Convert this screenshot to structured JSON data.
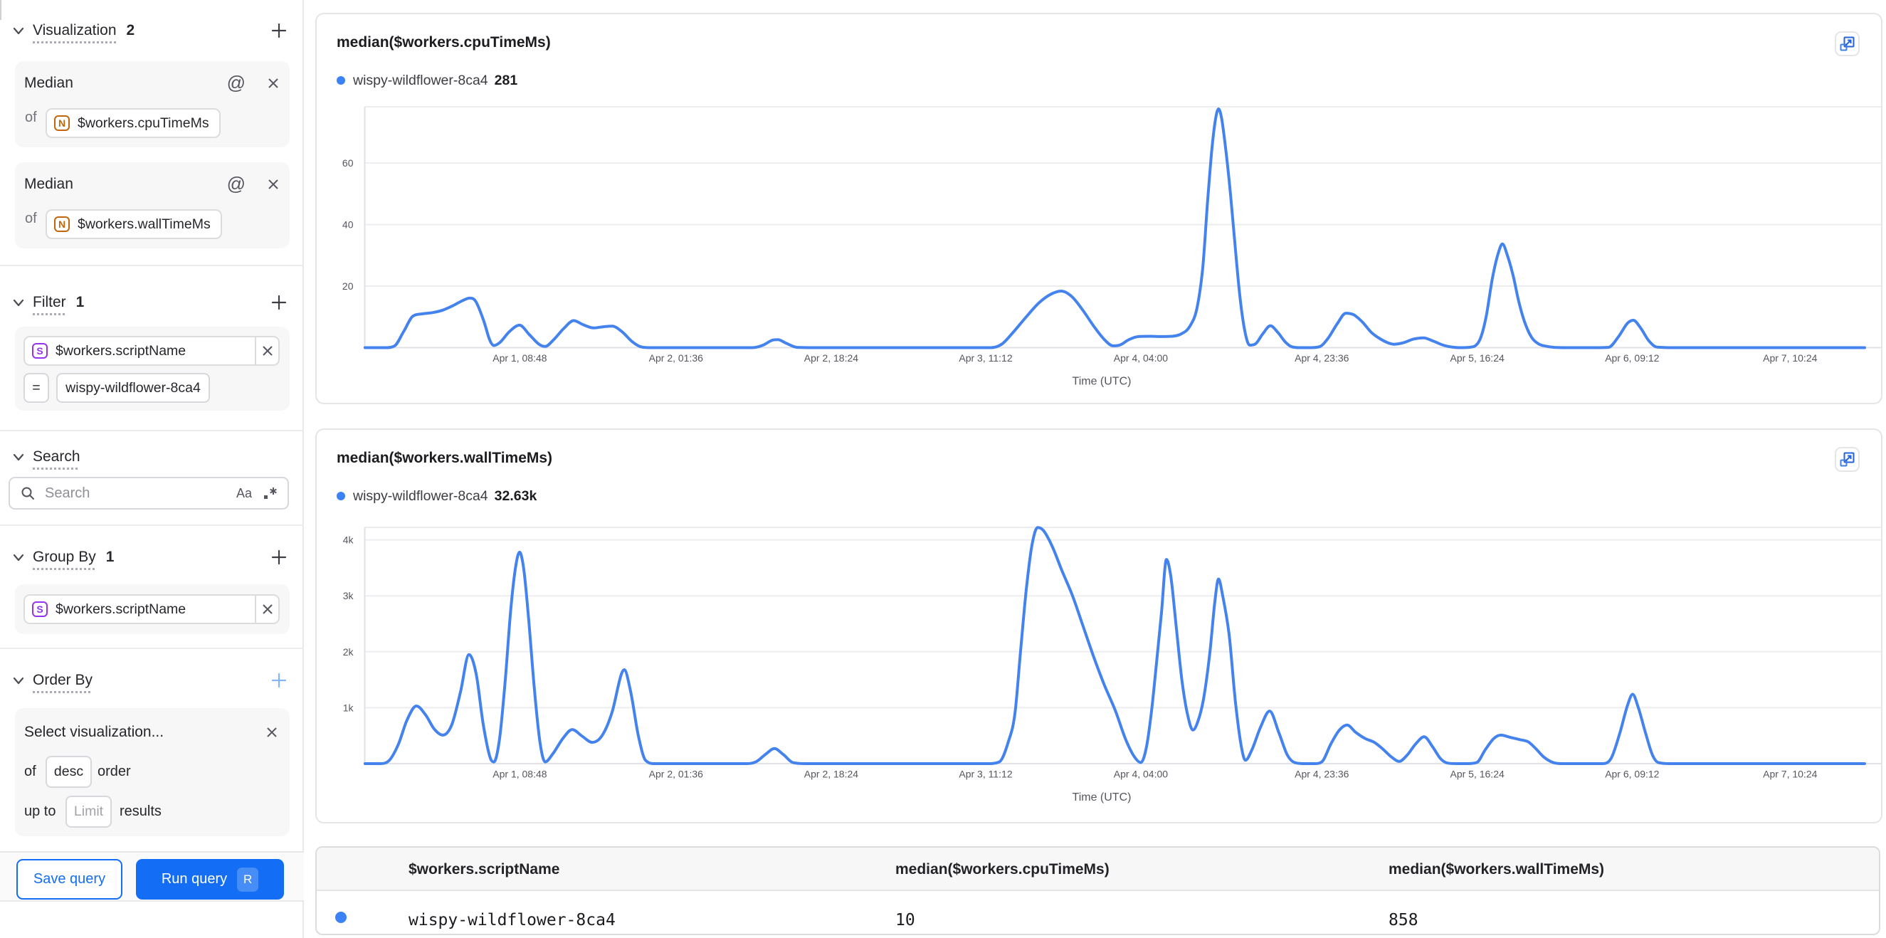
{
  "colors": {
    "accent_blue": "#146ef5",
    "series_blue": "#4483ee",
    "dot_blue": "#3b82f6",
    "n_badge": "#c2660e",
    "s_badge": "#9333ea"
  },
  "sidebar": {
    "visualization": {
      "title": "Visualization",
      "count": "2",
      "cards": [
        {
          "label": "Median",
          "of": "of",
          "badge": "N",
          "field": "$workers.cpuTimeMs"
        },
        {
          "label": "Median",
          "of": "of",
          "badge": "N",
          "field": "$workers.wallTimeMs"
        }
      ]
    },
    "filter": {
      "title": "Filter",
      "count": "1",
      "field_badge": "S",
      "field": "$workers.scriptName",
      "operator": "=",
      "value": "wispy-wildflower-8ca4"
    },
    "search": {
      "title": "Search",
      "placeholder": "Search",
      "case_icon": "Aa"
    },
    "group_by": {
      "title": "Group By",
      "count": "1",
      "field_badge": "S",
      "field": "$workers.scriptName"
    },
    "order_by": {
      "title": "Order By",
      "placeholder": "Select visualization...",
      "of": "of",
      "direction": "desc",
      "order_word": "order",
      "up_to": "up to",
      "limit": "Limit",
      "results_word": "results"
    },
    "footer": {
      "save": "Save query",
      "run": "Run query",
      "run_key": "R"
    }
  },
  "chart_data": [
    {
      "type": "line",
      "title": "median($workers.cpuTimeMs)",
      "legend": {
        "name": "wispy-wildflower-8ca4",
        "value": "281"
      },
      "xlabel": "Time (UTC)",
      "ylim": [
        0,
        78.3
      ],
      "yticks": [
        {
          "label": "20",
          "v": 20
        },
        {
          "label": "40",
          "v": 40
        },
        {
          "label": "60",
          "v": 60
        }
      ],
      "xticks": [
        {
          "label": "Apr 1, 08:48",
          "f": 0.1034
        },
        {
          "label": "Apr 2, 01:36",
          "f": 0.2075
        },
        {
          "label": "Apr 2, 18:24",
          "f": 0.311
        },
        {
          "label": "Apr 3, 11:12",
          "f": 0.414
        },
        {
          "label": "Apr 4, 04:00",
          "f": 0.5174
        },
        {
          "label": "Apr 4, 23:36",
          "f": 0.6381
        },
        {
          "label": "Apr 5, 16:24",
          "f": 0.7417
        },
        {
          "label": "Apr 6, 09:12",
          "f": 0.845
        },
        {
          "label": "Apr 7, 10:24",
          "f": 0.9503
        }
      ],
      "points": [
        [
          0.0002,
          0
        ],
        [
          0.014,
          0
        ],
        [
          0.0197,
          0.5
        ],
        [
          0.0259,
          5.2
        ],
        [
          0.032,
          10.2
        ],
        [
          0.0387,
          11.0
        ],
        [
          0.0453,
          11.4
        ],
        [
          0.052,
          12.2
        ],
        [
          0.0586,
          13.6
        ],
        [
          0.0652,
          15.3
        ],
        [
          0.07,
          16.1
        ],
        [
          0.0738,
          15.2
        ],
        [
          0.0795,
          8.5
        ],
        [
          0.0833,
          2.5
        ],
        [
          0.0861,
          0.7
        ],
        [
          0.0899,
          1.6
        ],
        [
          0.0966,
          5.3
        ],
        [
          0.1032,
          7.3
        ],
        [
          0.1098,
          4.2
        ],
        [
          0.1165,
          1.0
        ],
        [
          0.1203,
          0.4
        ],
        [
          0.126,
          2.6
        ],
        [
          0.1326,
          6.2
        ],
        [
          0.1393,
          8.8
        ],
        [
          0.1459,
          7.4
        ],
        [
          0.1526,
          6.4
        ],
        [
          0.1592,
          6.8
        ],
        [
          0.1649,
          7.0
        ],
        [
          0.1715,
          5.2
        ],
        [
          0.1782,
          2.0
        ],
        [
          0.1839,
          0.3
        ],
        [
          0.1896,
          0
        ],
        [
          0.2133,
          0
        ],
        [
          0.2418,
          0
        ],
        [
          0.2584,
          0
        ],
        [
          0.2655,
          0.8
        ],
        [
          0.2716,
          2.4
        ],
        [
          0.2754,
          2.6
        ],
        [
          0.2811,
          1.4
        ],
        [
          0.2883,
          0.1
        ],
        [
          0.3034,
          0
        ],
        [
          0.3509,
          0
        ],
        [
          0.3936,
          0
        ],
        [
          0.4173,
          0
        ],
        [
          0.4249,
          1.2
        ],
        [
          0.4316,
          4.6
        ],
        [
          0.441,
          10
        ],
        [
          0.4496,
          14.6
        ],
        [
          0.4572,
          17.3
        ],
        [
          0.4643,
          18.4
        ],
        [
          0.4714,
          16.6
        ],
        [
          0.479,
          12
        ],
        [
          0.4866,
          6.6
        ],
        [
          0.4932,
          2.6
        ],
        [
          0.4989,
          0.6
        ],
        [
          0.5037,
          0.9
        ],
        [
          0.5094,
          2.6
        ],
        [
          0.516,
          3.6
        ],
        [
          0.5236,
          3.7
        ],
        [
          0.5312,
          3.6
        ],
        [
          0.5383,
          3.7
        ],
        [
          0.5445,
          4.5
        ],
        [
          0.5502,
          7
        ],
        [
          0.5549,
          13
        ],
        [
          0.5587,
          26
        ],
        [
          0.562,
          48
        ],
        [
          0.5649,
          65
        ],
        [
          0.5673,
          74.5
        ],
        [
          0.5692,
          77.6
        ],
        [
          0.5711,
          75
        ],
        [
          0.5739,
          65
        ],
        [
          0.5772,
          50
        ],
        [
          0.5801,
          34
        ],
        [
          0.5834,
          17
        ],
        [
          0.5867,
          5.5
        ],
        [
          0.59,
          0.8
        ],
        [
          0.5938,
          1.2
        ],
        [
          0.5986,
          4.4
        ],
        [
          0.6038,
          7.1
        ],
        [
          0.609,
          4.8
        ],
        [
          0.6138,
          1.8
        ],
        [
          0.618,
          0.3
        ],
        [
          0.6233,
          0
        ],
        [
          0.6308,
          0
        ],
        [
          0.6365,
          0.3
        ],
        [
          0.6422,
          3
        ],
        [
          0.6484,
          7.8
        ],
        [
          0.6541,
          11.2
        ],
        [
          0.6593,
          10.7
        ],
        [
          0.665,
          8.4
        ],
        [
          0.6712,
          4.9
        ],
        [
          0.6769,
          2.9
        ],
        [
          0.6821,
          1.6
        ],
        [
          0.6864,
          1.1
        ],
        [
          0.6925,
          1.6
        ],
        [
          0.6992,
          2.8
        ],
        [
          0.7058,
          3.2
        ],
        [
          0.7125,
          2.1
        ],
        [
          0.7191,
          0.8
        ],
        [
          0.7248,
          0.2
        ],
        [
          0.7314,
          0
        ],
        [
          0.739,
          0.3
        ],
        [
          0.7438,
          3
        ],
        [
          0.7476,
          10
        ],
        [
          0.7518,
          22.5
        ],
        [
          0.7556,
          30.5
        ],
        [
          0.7585,
          33.7
        ],
        [
          0.7618,
          30
        ],
        [
          0.7656,
          23.5
        ],
        [
          0.7694,
          15
        ],
        [
          0.7732,
          8.5
        ],
        [
          0.7779,
          3.4
        ],
        [
          0.7827,
          1.2
        ],
        [
          0.7874,
          0.5
        ],
        [
          0.7931,
          0.1
        ],
        [
          0.8017,
          0
        ],
        [
          0.8206,
          0
        ],
        [
          0.8292,
          0.1
        ],
        [
          0.8358,
          3.5
        ],
        [
          0.842,
          8
        ],
        [
          0.8458,
          8.9
        ],
        [
          0.8505,
          6.5
        ],
        [
          0.8562,
          2.2
        ],
        [
          0.8614,
          0.2
        ],
        [
          0.8728,
          0
        ],
        [
          0.906,
          0
        ],
        [
          0.944,
          0
        ],
        [
          0.9725,
          0
        ],
        [
          1.0,
          0
        ]
      ]
    },
    {
      "type": "line",
      "title": "median($workers.wallTimeMs)",
      "legend": {
        "name": "wispy-wildflower-8ca4",
        "value": "32.63k"
      },
      "xlabel": "Time (UTC)",
      "ylim": [
        0,
        4224
      ],
      "yticks": [
        {
          "label": "1k",
          "v": 1000
        },
        {
          "label": "2k",
          "v": 2000
        },
        {
          "label": "3k",
          "v": 3000
        },
        {
          "label": "4k",
          "v": 4000
        }
      ],
      "xticks": [
        {
          "label": "Apr 1, 08:48",
          "f": 0.1034
        },
        {
          "label": "Apr 2, 01:36",
          "f": 0.2075
        },
        {
          "label": "Apr 2, 18:24",
          "f": 0.311
        },
        {
          "label": "Apr 3, 11:12",
          "f": 0.414
        },
        {
          "label": "Apr 4, 04:00",
          "f": 0.5174
        },
        {
          "label": "Apr 4, 23:36",
          "f": 0.6381
        },
        {
          "label": "Apr 5, 16:24",
          "f": 0.7417
        },
        {
          "label": "Apr 6, 09:12",
          "f": 0.845
        },
        {
          "label": "Apr 7, 10:24",
          "f": 0.9503
        }
      ],
      "points": [
        [
          0.0002,
          0
        ],
        [
          0.0102,
          0
        ],
        [
          0.0164,
          60
        ],
        [
          0.0225,
          350
        ],
        [
          0.0282,
          780
        ],
        [
          0.0344,
          1030
        ],
        [
          0.0406,
          870
        ],
        [
          0.0463,
          620
        ],
        [
          0.052,
          510
        ],
        [
          0.0581,
          700
        ],
        [
          0.0638,
          1280
        ],
        [
          0.0695,
          1950
        ],
        [
          0.0743,
          1600
        ],
        [
          0.079,
          700
        ],
        [
          0.0837,
          100
        ],
        [
          0.0861,
          30
        ],
        [
          0.0899,
          450
        ],
        [
          0.0937,
          1500
        ],
        [
          0.0975,
          2800
        ],
        [
          0.1008,
          3550
        ],
        [
          0.1032,
          3780
        ],
        [
          0.106,
          3480
        ],
        [
          0.1094,
          2540
        ],
        [
          0.1132,
          1300
        ],
        [
          0.117,
          350
        ],
        [
          0.1203,
          30
        ],
        [
          0.1255,
          180
        ],
        [
          0.1321,
          450
        ],
        [
          0.1383,
          610
        ],
        [
          0.145,
          490
        ],
        [
          0.1516,
          380
        ],
        [
          0.1582,
          500
        ],
        [
          0.1649,
          920
        ],
        [
          0.1711,
          1600
        ],
        [
          0.173,
          1680
        ],
        [
          0.1772,
          1300
        ],
        [
          0.1824,
          500
        ],
        [
          0.1872,
          60
        ],
        [
          0.1934,
          0
        ],
        [
          0.2085,
          0
        ],
        [
          0.2323,
          0
        ],
        [
          0.2536,
          0
        ],
        [
          0.2607,
          30
        ],
        [
          0.2674,
          170
        ],
        [
          0.2731,
          270
        ],
        [
          0.2792,
          160
        ],
        [
          0.2854,
          20
        ],
        [
          0.294,
          0
        ],
        [
          0.3272,
          0
        ],
        [
          0.3746,
          0
        ],
        [
          0.4149,
          0
        ],
        [
          0.423,
          30
        ],
        [
          0.4292,
          400
        ],
        [
          0.4335,
          900
        ],
        [
          0.4372,
          2000
        ],
        [
          0.441,
          3100
        ],
        [
          0.4448,
          3900
        ],
        [
          0.4486,
          4220
        ],
        [
          0.4524,
          4170
        ],
        [
          0.4581,
          3900
        ],
        [
          0.4648,
          3450
        ],
        [
          0.4719,
          3000
        ],
        [
          0.479,
          2450
        ],
        [
          0.4861,
          1900
        ],
        [
          0.4932,
          1400
        ],
        [
          0.5004,
          950
        ],
        [
          0.5075,
          420
        ],
        [
          0.5132,
          120
        ],
        [
          0.5174,
          20
        ],
        [
          0.5212,
          300
        ],
        [
          0.5246,
          950
        ],
        [
          0.5279,
          1800
        ],
        [
          0.5312,
          2700
        ],
        [
          0.5345,
          3650
        ],
        [
          0.5374,
          3350
        ],
        [
          0.5412,
          2400
        ],
        [
          0.545,
          1450
        ],
        [
          0.5488,
          850
        ],
        [
          0.5521,
          600
        ],
        [
          0.5554,
          750
        ],
        [
          0.5592,
          1150
        ],
        [
          0.5635,
          2000
        ],
        [
          0.5668,
          2900
        ],
        [
          0.5692,
          3300
        ],
        [
          0.572,
          3000
        ],
        [
          0.5763,
          2300
        ],
        [
          0.5805,
          1100
        ],
        [
          0.5848,
          250
        ],
        [
          0.5872,
          60
        ],
        [
          0.5915,
          250
        ],
        [
          0.5972,
          650
        ],
        [
          0.6033,
          940
        ],
        [
          0.6095,
          550
        ],
        [
          0.6152,
          150
        ],
        [
          0.6199,
          20
        ],
        [
          0.6261,
          0
        ],
        [
          0.6332,
          0
        ],
        [
          0.638,
          30
        ],
        [
          0.6441,
          350
        ],
        [
          0.6498,
          600
        ],
        [
          0.655,
          690
        ],
        [
          0.6607,
          560
        ],
        [
          0.6669,
          450
        ],
        [
          0.6731,
          380
        ],
        [
          0.6788,
          260
        ],
        [
          0.6845,
          120
        ],
        [
          0.6897,
          40
        ],
        [
          0.6949,
          150
        ],
        [
          0.7006,
          350
        ],
        [
          0.7063,
          480
        ],
        [
          0.712,
          300
        ],
        [
          0.7172,
          90
        ],
        [
          0.7219,
          10
        ],
        [
          0.7281,
          0
        ],
        [
          0.7352,
          0
        ],
        [
          0.7414,
          20
        ],
        [
          0.7471,
          250
        ],
        [
          0.7528,
          450
        ],
        [
          0.7575,
          510
        ],
        [
          0.7637,
          470
        ],
        [
          0.7699,
          430
        ],
        [
          0.7756,
          390
        ],
        [
          0.7803,
          280
        ],
        [
          0.786,
          120
        ],
        [
          0.7922,
          20
        ],
        [
          0.7983,
          0
        ],
        [
          0.8112,
          0
        ],
        [
          0.8254,
          0
        ],
        [
          0.8311,
          100
        ],
        [
          0.8368,
          550
        ],
        [
          0.842,
          1050
        ],
        [
          0.8453,
          1240
        ],
        [
          0.8491,
          1000
        ],
        [
          0.8539,
          550
        ],
        [
          0.8586,
          150
        ],
        [
          0.8624,
          20
        ],
        [
          0.8705,
          0
        ],
        [
          0.8966,
          0
        ],
        [
          0.944,
          0
        ],
        [
          1.0,
          0
        ]
      ]
    }
  ],
  "table": {
    "headers": [
      "$workers.scriptName",
      "median($workers.cpuTimeMs)",
      "median($workers.wallTimeMs)"
    ],
    "rows": [
      {
        "name": "wispy-wildflower-8ca4",
        "cpu": "10",
        "wall": "858"
      }
    ]
  }
}
